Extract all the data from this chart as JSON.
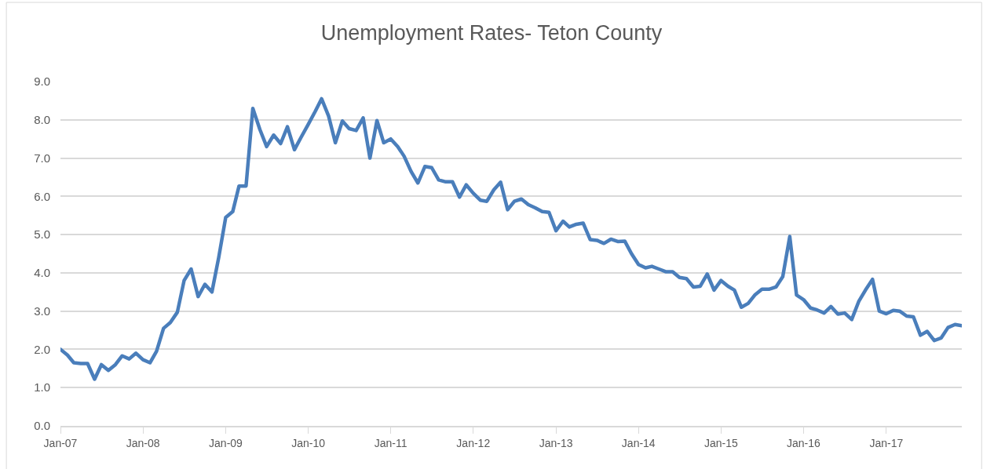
{
  "chart_data": {
    "type": "line",
    "title": "Unemployment Rates- Teton County",
    "x": [
      "2007-01",
      "2007-02",
      "2007-03",
      "2007-04",
      "2007-05",
      "2007-06",
      "2007-07",
      "2007-08",
      "2007-09",
      "2007-10",
      "2007-11",
      "2007-12",
      "2008-01",
      "2008-02",
      "2008-03",
      "2008-04",
      "2008-05",
      "2008-06",
      "2008-07",
      "2008-08",
      "2008-09",
      "2008-10",
      "2008-11",
      "2008-12",
      "2009-01",
      "2009-02",
      "2009-03",
      "2009-04",
      "2009-05",
      "2009-06",
      "2009-07",
      "2009-08",
      "2009-09",
      "2009-10",
      "2009-11",
      "2009-12",
      "2010-01",
      "2010-02",
      "2010-03",
      "2010-04",
      "2010-05",
      "2010-06",
      "2010-07",
      "2010-08",
      "2010-09",
      "2010-10",
      "2010-11",
      "2010-12",
      "2011-01",
      "2011-02",
      "2011-03",
      "2011-04",
      "2011-05",
      "2011-06",
      "2011-07",
      "2011-08",
      "2011-09",
      "2011-10",
      "2011-11",
      "2011-12",
      "2012-01",
      "2012-02",
      "2012-03",
      "2012-04",
      "2012-05",
      "2012-06",
      "2012-07",
      "2012-08",
      "2012-09",
      "2012-10",
      "2012-11",
      "2012-12",
      "2013-01",
      "2013-02",
      "2013-03",
      "2013-04",
      "2013-05",
      "2013-06",
      "2013-07",
      "2013-08",
      "2013-09",
      "2013-10",
      "2013-11",
      "2013-12",
      "2014-01",
      "2014-02",
      "2014-03",
      "2014-04",
      "2014-05",
      "2014-06",
      "2014-07",
      "2014-08",
      "2014-09",
      "2014-10",
      "2014-11",
      "2014-12",
      "2015-01",
      "2015-02",
      "2015-03",
      "2015-04",
      "2015-05",
      "2015-06",
      "2015-07",
      "2015-08",
      "2015-09",
      "2015-10",
      "2015-11",
      "2015-12",
      "2016-01",
      "2016-02",
      "2016-03",
      "2016-04",
      "2016-05",
      "2016-06",
      "2016-07",
      "2016-08",
      "2016-09",
      "2016-10",
      "2016-11",
      "2016-12",
      "2017-01",
      "2017-02",
      "2017-03",
      "2017-04",
      "2017-05",
      "2017-06",
      "2017-07",
      "2017-08",
      "2017-09",
      "2017-10",
      "2017-11",
      "2017-12"
    ],
    "series": [
      {
        "color": "#4a7ebb",
        "values": [
          2.0,
          1.85,
          1.65,
          1.63,
          1.63,
          1.22,
          1.6,
          1.45,
          1.6,
          1.83,
          1.75,
          1.9,
          1.73,
          1.65,
          1.95,
          2.55,
          2.7,
          2.97,
          3.8,
          4.1,
          3.38,
          3.7,
          3.5,
          4.4,
          5.45,
          5.6,
          6.27,
          6.27,
          8.3,
          7.75,
          7.3,
          7.6,
          7.38,
          7.82,
          7.22,
          7.55,
          7.88,
          8.22,
          8.55,
          8.1,
          7.4,
          7.97,
          7.77,
          7.72,
          8.05,
          7.0,
          7.98,
          7.4,
          7.5,
          7.3,
          7.05,
          6.65,
          6.35,
          6.78,
          6.75,
          6.43,
          6.38,
          6.38,
          5.98,
          6.3,
          6.08,
          5.9,
          5.87,
          6.17,
          6.37,
          5.65,
          5.87,
          5.93,
          5.78,
          5.7,
          5.6,
          5.58,
          5.1,
          5.35,
          5.2,
          5.27,
          5.3,
          4.87,
          4.85,
          4.77,
          4.88,
          4.82,
          4.83,
          4.5,
          4.22,
          4.13,
          4.17,
          4.1,
          4.03,
          4.03,
          3.88,
          3.85,
          3.63,
          3.65,
          3.97,
          3.55,
          3.8,
          3.65,
          3.55,
          3.1,
          3.2,
          3.43,
          3.57,
          3.57,
          3.63,
          3.9,
          4.95,
          3.42,
          3.3,
          3.08,
          3.03,
          2.95,
          3.12,
          2.92,
          2.95,
          2.78,
          3.25,
          3.55,
          3.83,
          3.0,
          2.93,
          3.02,
          3.0,
          2.87,
          2.85,
          2.37,
          2.47,
          2.23,
          2.3,
          2.57,
          2.65,
          2.62
        ]
      }
    ],
    "xlim": [
      "2007-01",
      "2017-12"
    ],
    "xticks": [
      {
        "value": "2007-01",
        "label": "Jan-07"
      },
      {
        "value": "2008-01",
        "label": "Jan-08"
      },
      {
        "value": "2009-01",
        "label": "Jan-09"
      },
      {
        "value": "2010-01",
        "label": "Jan-10"
      },
      {
        "value": "2011-01",
        "label": "Jan-11"
      },
      {
        "value": "2012-01",
        "label": "Jan-12"
      },
      {
        "value": "2013-01",
        "label": "Jan-13"
      },
      {
        "value": "2014-01",
        "label": "Jan-14"
      },
      {
        "value": "2015-01",
        "label": "Jan-15"
      },
      {
        "value": "2016-01",
        "label": "Jan-16"
      },
      {
        "value": "2017-01",
        "label": "Jan-17"
      }
    ],
    "ylim": [
      0,
      9
    ],
    "yticks": [
      {
        "value": 0,
        "label": "0.0"
      },
      {
        "value": 1,
        "label": "1.0"
      },
      {
        "value": 2,
        "label": "2.0"
      },
      {
        "value": 3,
        "label": "3.0"
      },
      {
        "value": 4,
        "label": "4.0"
      },
      {
        "value": 5,
        "label": "5.0"
      },
      {
        "value": 6,
        "label": "6.0"
      },
      {
        "value": 7,
        "label": "7.0"
      },
      {
        "value": 8,
        "label": "8.0"
      },
      {
        "value": 9,
        "label": "9.0"
      }
    ],
    "grid": "y",
    "marker": "none",
    "line_style": "solid"
  }
}
